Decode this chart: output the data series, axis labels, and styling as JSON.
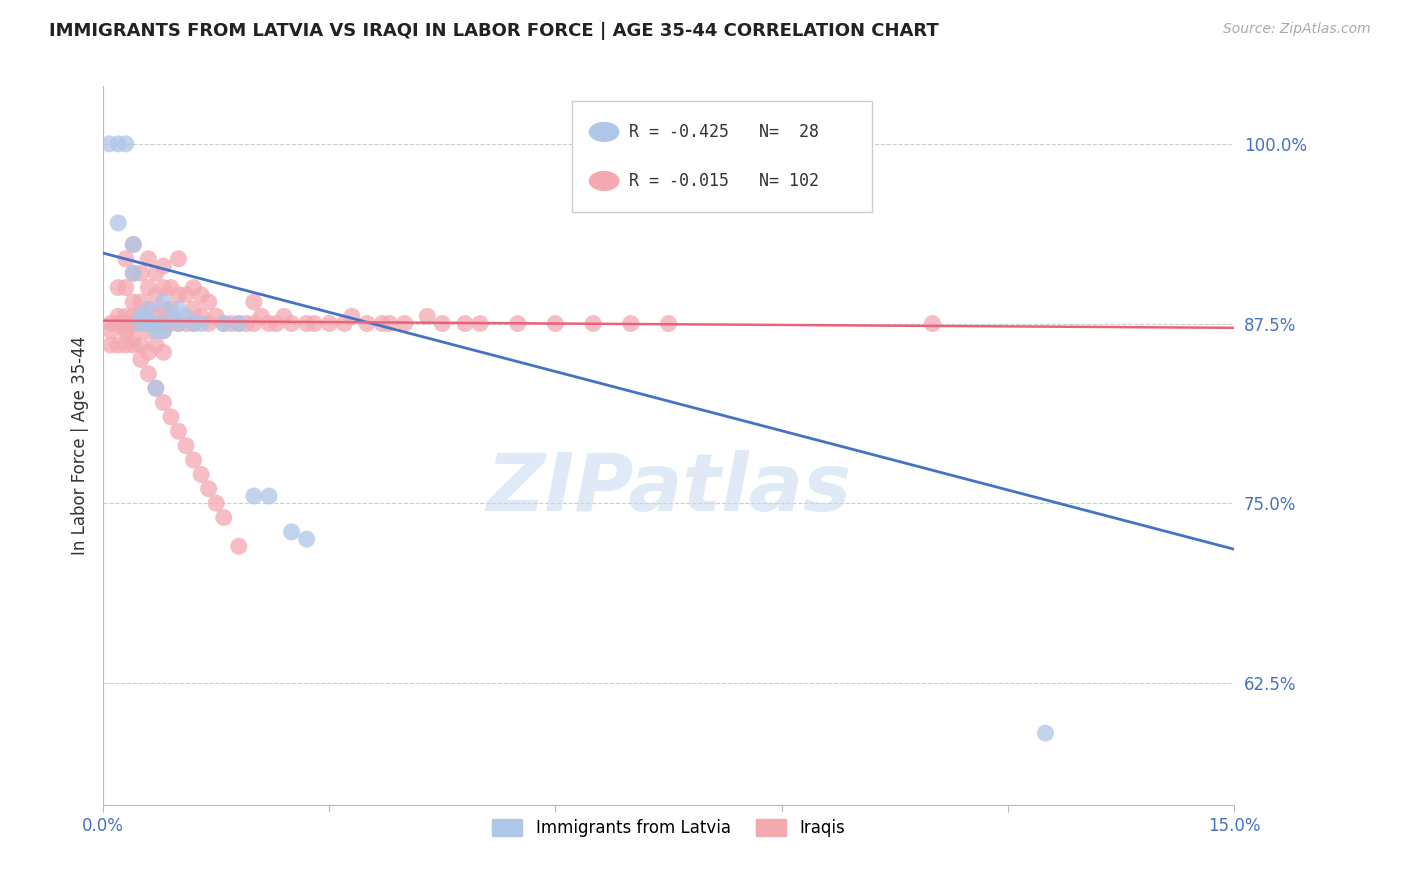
{
  "title": "IMMIGRANTS FROM LATVIA VS IRAQI IN LABOR FORCE | AGE 35-44 CORRELATION CHART",
  "source": "Source: ZipAtlas.com",
  "ylabel": "In Labor Force | Age 35-44",
  "xlim": [
    0.0,
    0.15
  ],
  "ylim": [
    0.54,
    1.04
  ],
  "ytick_labels_right": [
    "100.0%",
    "87.5%",
    "75.0%",
    "62.5%"
  ],
  "ytick_vals_right": [
    1.0,
    0.875,
    0.75,
    0.625
  ],
  "grid_color": "#cccccc",
  "background_color": "#ffffff",
  "latvia_color": "#aec6e8",
  "iraq_color": "#f4a9b0",
  "latvia_line_color": "#4472c4",
  "iraq_line_color": "#e8637a",
  "latvia_R": -0.425,
  "latvia_N": 28,
  "iraq_R": -0.015,
  "iraq_N": 102,
  "legend_latvians": "Immigrants from Latvia",
  "legend_iraqis": "Iraqis",
  "watermark": "ZIPatlas",
  "latvia_trendline_x0": 0.0,
  "latvia_trendline_y0": 0.924,
  "latvia_trendline_x1": 0.15,
  "latvia_trendline_y1": 0.718,
  "iraq_trendline_x0": 0.0,
  "iraq_trendline_y0": 0.877,
  "iraq_trendline_x1": 0.15,
  "iraq_trendline_y1": 0.872,
  "latvia_points_x": [
    0.0008,
    0.002,
    0.002,
    0.003,
    0.004,
    0.004,
    0.005,
    0.005,
    0.006,
    0.007,
    0.007,
    0.008,
    0.008,
    0.009,
    0.01,
    0.01,
    0.011,
    0.012,
    0.013,
    0.016,
    0.018,
    0.02,
    0.022,
    0.025,
    0.027,
    0.125,
    0.007,
    0.006
  ],
  "latvia_points_y": [
    1.0,
    1.0,
    0.945,
    1.0,
    0.91,
    0.93,
    0.88,
    0.875,
    0.875,
    0.87,
    0.875,
    0.89,
    0.87,
    0.88,
    0.885,
    0.875,
    0.88,
    0.875,
    0.875,
    0.875,
    0.875,
    0.755,
    0.755,
    0.73,
    0.725,
    0.59,
    0.83,
    0.885
  ],
  "iraq_points_x": [
    0.001,
    0.001,
    0.001,
    0.002,
    0.002,
    0.002,
    0.002,
    0.003,
    0.003,
    0.003,
    0.003,
    0.003,
    0.003,
    0.004,
    0.004,
    0.004,
    0.004,
    0.004,
    0.004,
    0.005,
    0.005,
    0.005,
    0.005,
    0.005,
    0.006,
    0.006,
    0.006,
    0.006,
    0.006,
    0.006,
    0.007,
    0.007,
    0.007,
    0.007,
    0.007,
    0.008,
    0.008,
    0.008,
    0.008,
    0.008,
    0.008,
    0.009,
    0.009,
    0.009,
    0.01,
    0.01,
    0.01,
    0.011,
    0.011,
    0.012,
    0.012,
    0.012,
    0.013,
    0.013,
    0.014,
    0.014,
    0.015,
    0.016,
    0.017,
    0.018,
    0.019,
    0.02,
    0.02,
    0.021,
    0.022,
    0.023,
    0.024,
    0.025,
    0.027,
    0.028,
    0.03,
    0.032,
    0.033,
    0.035,
    0.037,
    0.038,
    0.04,
    0.043,
    0.045,
    0.048,
    0.05,
    0.055,
    0.06,
    0.065,
    0.07,
    0.075,
    0.11,
    0.003,
    0.004,
    0.005,
    0.006,
    0.007,
    0.008,
    0.009,
    0.01,
    0.011,
    0.012,
    0.013,
    0.014,
    0.015,
    0.016,
    0.018
  ],
  "iraq_points_y": [
    0.875,
    0.87,
    0.86,
    0.9,
    0.88,
    0.875,
    0.86,
    0.92,
    0.9,
    0.88,
    0.875,
    0.87,
    0.86,
    0.93,
    0.91,
    0.89,
    0.88,
    0.875,
    0.865,
    0.91,
    0.89,
    0.88,
    0.875,
    0.86,
    0.92,
    0.9,
    0.885,
    0.875,
    0.87,
    0.855,
    0.91,
    0.895,
    0.88,
    0.875,
    0.86,
    0.915,
    0.9,
    0.885,
    0.875,
    0.87,
    0.855,
    0.9,
    0.885,
    0.875,
    0.92,
    0.895,
    0.875,
    0.895,
    0.875,
    0.9,
    0.885,
    0.875,
    0.895,
    0.88,
    0.89,
    0.875,
    0.88,
    0.875,
    0.875,
    0.875,
    0.875,
    0.89,
    0.875,
    0.88,
    0.875,
    0.875,
    0.88,
    0.875,
    0.875,
    0.875,
    0.875,
    0.875,
    0.88,
    0.875,
    0.875,
    0.875,
    0.875,
    0.88,
    0.875,
    0.875,
    0.875,
    0.875,
    0.875,
    0.875,
    0.875,
    0.875,
    0.875,
    0.87,
    0.86,
    0.85,
    0.84,
    0.83,
    0.82,
    0.81,
    0.8,
    0.79,
    0.78,
    0.77,
    0.76,
    0.75,
    0.74,
    0.72
  ]
}
